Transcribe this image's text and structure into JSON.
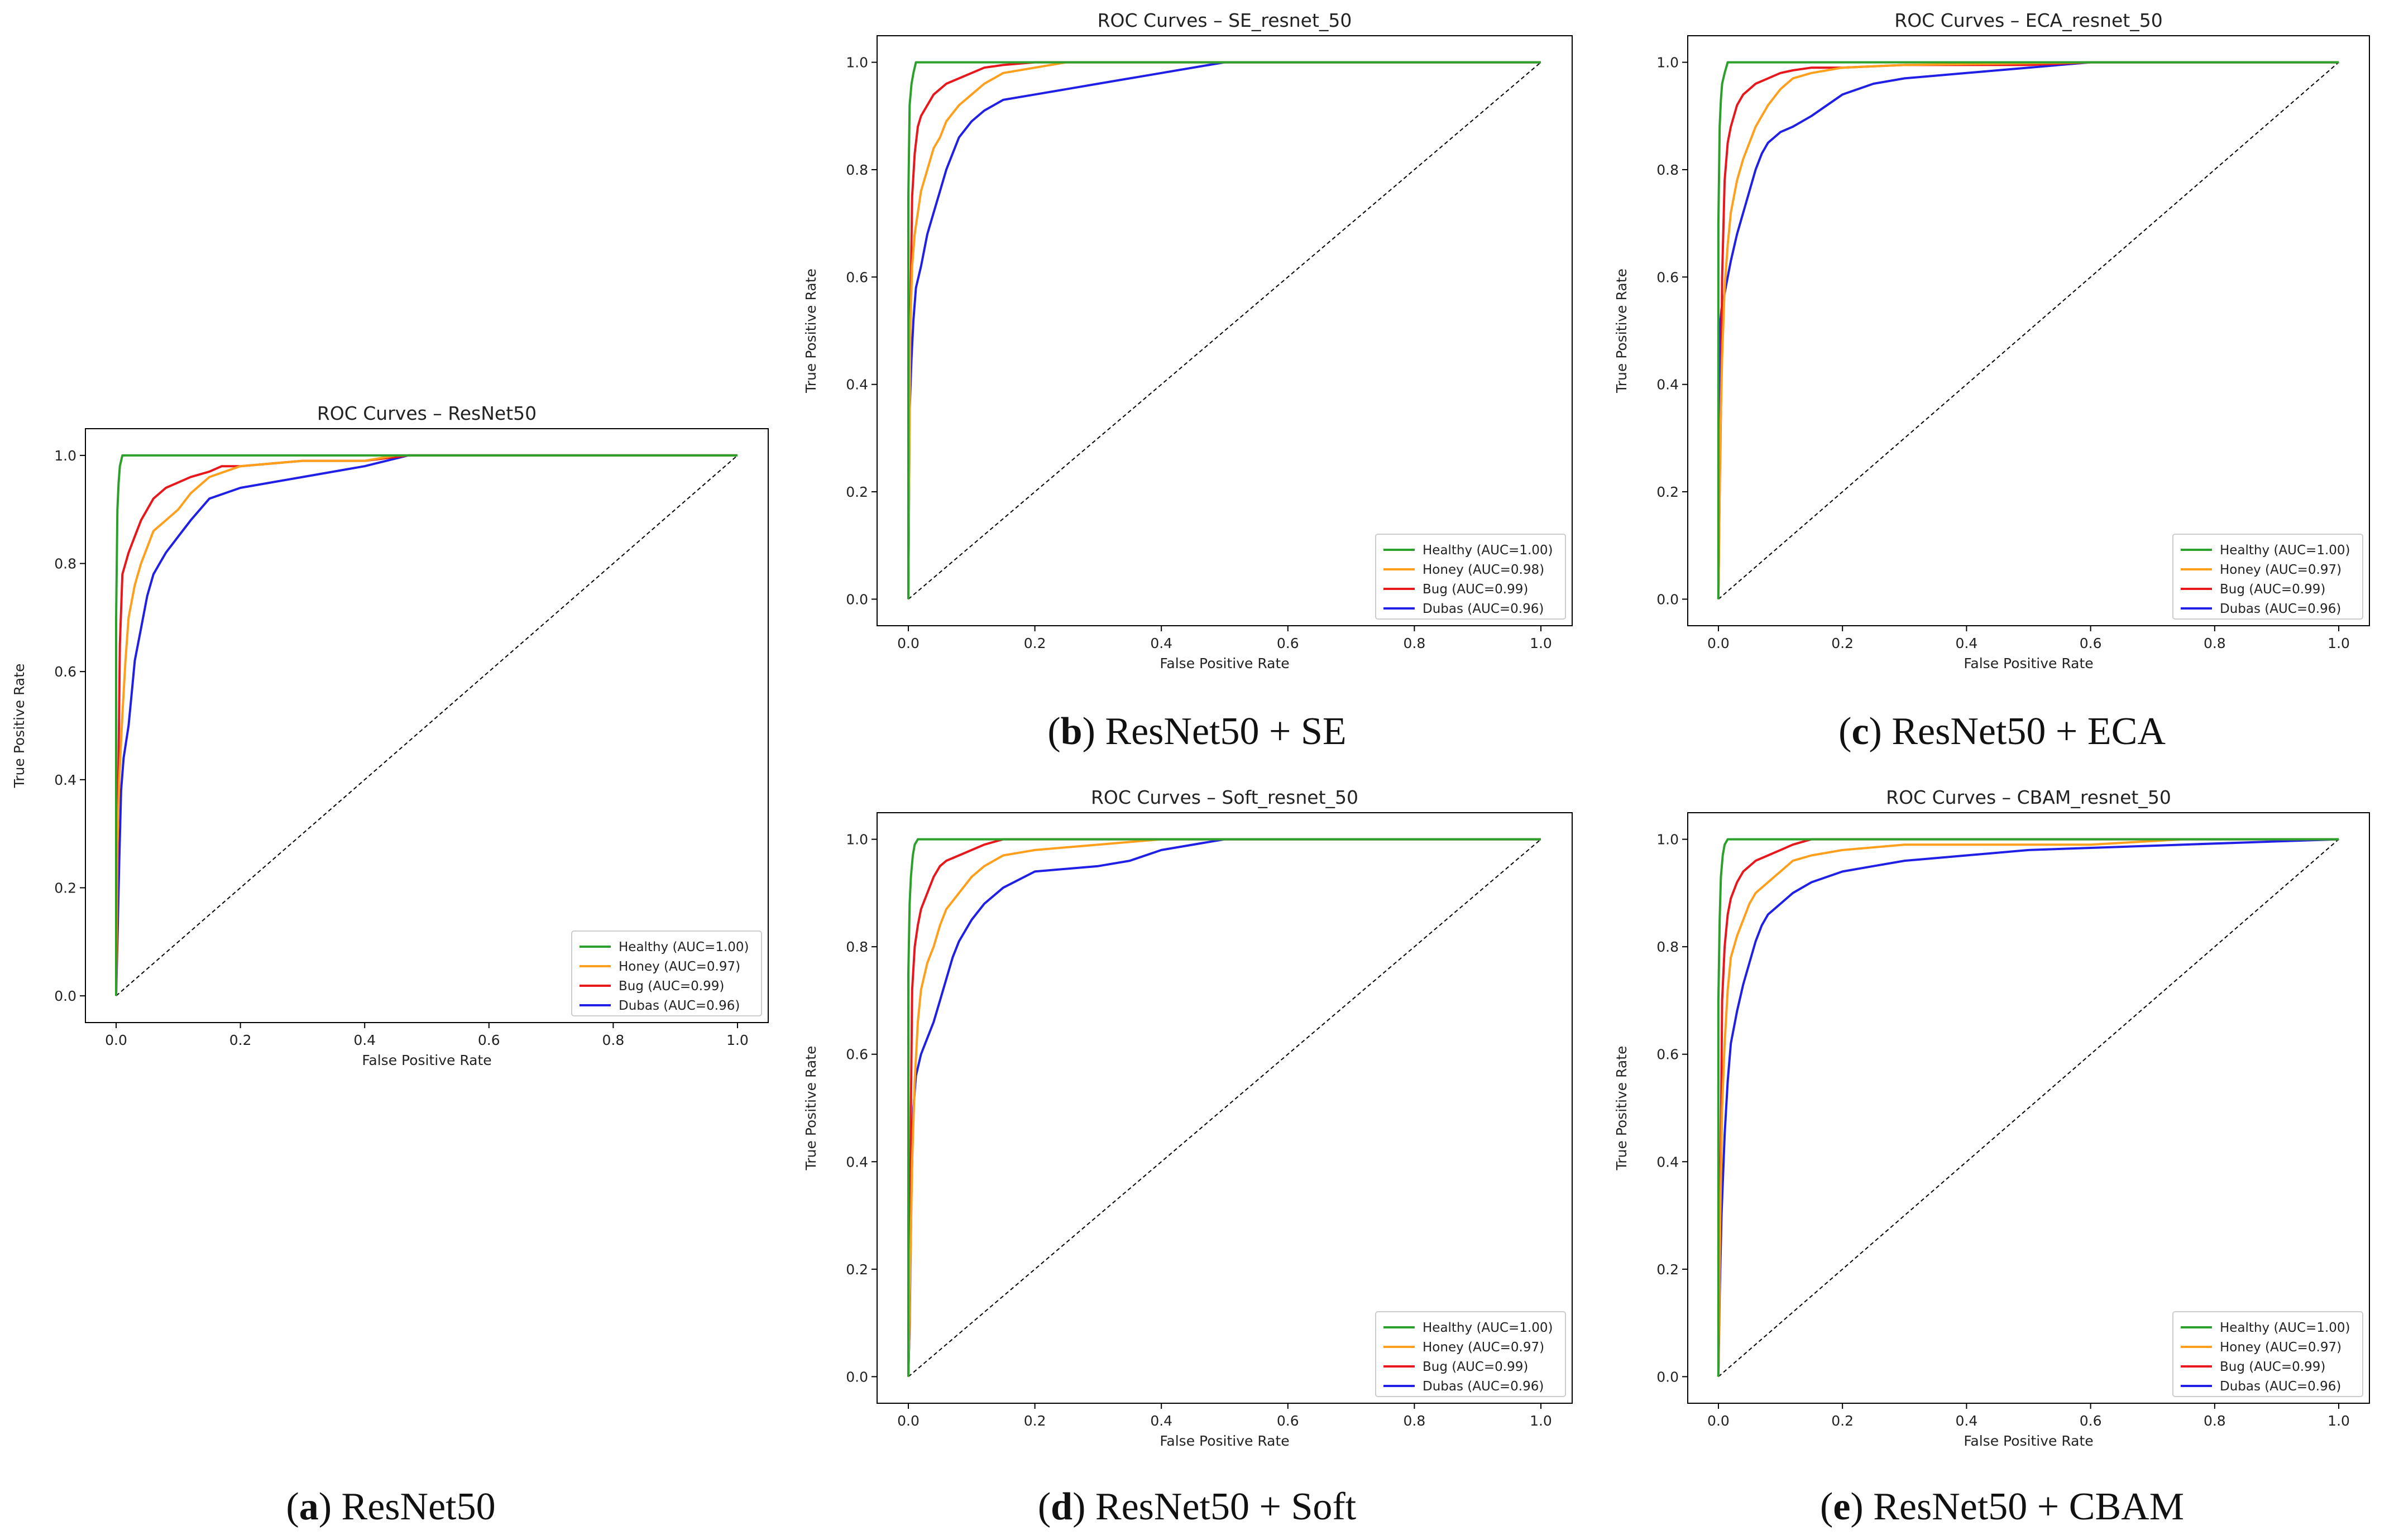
{
  "figure_captions": [
    {
      "letter": "a",
      "text": ") ResNet50"
    },
    {
      "letter": "b",
      "text": ") ResNet50 + SE"
    },
    {
      "letter": "c",
      "text": ") ResNet50 + ECA"
    },
    {
      "letter": "d",
      "text": ") ResNet50 + Soft"
    },
    {
      "letter": "e",
      "text": ") ResNet50 + CBAM"
    }
  ],
  "chart_data": [
    {
      "type": "line",
      "title": "ROC Curves – ResNet50",
      "xlabel": "False Positive Rate",
      "ylabel": "True Positive Rate",
      "xlim": [
        0,
        1
      ],
      "ylim": [
        0,
        1
      ],
      "xticks": [
        "0.0",
        "0.2",
        "0.4",
        "0.6",
        "0.8",
        "1.0"
      ],
      "yticks": [
        "0.0",
        "0.2",
        "0.4",
        "0.6",
        "0.8",
        "1.0"
      ],
      "legend_position": "lower-right",
      "diagonal": {
        "x": [
          0,
          1
        ],
        "y": [
          0,
          1
        ],
        "style": "dashed",
        "color": "#000000"
      },
      "series": [
        {
          "name": "Healthy (AUC=1.00)",
          "color": "#2ca02c",
          "x": [
            0,
            0,
            0.002,
            0.004,
            0.006,
            0.01,
            0.02,
            0.2,
            1
          ],
          "y": [
            0,
            0.7,
            0.9,
            0.95,
            0.98,
            1.0,
            1.0,
            1.0,
            1.0
          ]
        },
        {
          "name": "Honey (AUC=0.97)",
          "color": "#ff9f1c",
          "x": [
            0,
            0.002,
            0.005,
            0.01,
            0.015,
            0.02,
            0.03,
            0.04,
            0.05,
            0.06,
            0.08,
            0.1,
            0.12,
            0.15,
            0.2,
            0.3,
            0.4,
            0.45,
            1
          ],
          "y": [
            0,
            0.28,
            0.4,
            0.52,
            0.62,
            0.7,
            0.76,
            0.8,
            0.83,
            0.86,
            0.88,
            0.9,
            0.93,
            0.96,
            0.98,
            0.99,
            0.99,
            1.0,
            1.0
          ]
        },
        {
          "name": "Bug (AUC=0.99)",
          "color": "#e8171b",
          "x": [
            0,
            0.002,
            0.004,
            0.006,
            0.01,
            0.02,
            0.03,
            0.04,
            0.05,
            0.06,
            0.08,
            0.1,
            0.12,
            0.15,
            0.17,
            0.2,
            0.3,
            0.4,
            0.47,
            1
          ],
          "y": [
            0,
            0.25,
            0.45,
            0.65,
            0.78,
            0.82,
            0.85,
            0.88,
            0.9,
            0.92,
            0.94,
            0.95,
            0.96,
            0.97,
            0.98,
            0.98,
            0.99,
            0.99,
            1.0,
            1.0
          ]
        },
        {
          "name": "Dubas (AUC=0.96)",
          "color": "#1f1fe6",
          "x": [
            0,
            0.002,
            0.005,
            0.008,
            0.012,
            0.02,
            0.025,
            0.03,
            0.04,
            0.05,
            0.06,
            0.07,
            0.08,
            0.1,
            0.12,
            0.15,
            0.2,
            0.3,
            0.4,
            0.47,
            1
          ],
          "y": [
            0,
            0.1,
            0.25,
            0.38,
            0.44,
            0.5,
            0.56,
            0.62,
            0.68,
            0.74,
            0.78,
            0.8,
            0.82,
            0.85,
            0.88,
            0.92,
            0.94,
            0.96,
            0.98,
            1.0,
            1.0
          ]
        }
      ]
    },
    {
      "type": "line",
      "title": "ROC Curves – SE_resnet_50",
      "xlabel": "False Positive Rate",
      "ylabel": "True Positive Rate",
      "xlim": [
        0,
        1
      ],
      "ylim": [
        0,
        1
      ],
      "xticks": [
        "0.0",
        "0.2",
        "0.4",
        "0.6",
        "0.8",
        "1.0"
      ],
      "yticks": [
        "0.0",
        "0.2",
        "0.4",
        "0.6",
        "0.8",
        "1.0"
      ],
      "legend_position": "lower-right",
      "diagonal": {
        "x": [
          0,
          1
        ],
        "y": [
          0,
          1
        ],
        "style": "dashed",
        "color": "#000000"
      },
      "series": [
        {
          "name": "Healthy (AUC=1.00)",
          "color": "#2ca02c",
          "x": [
            0,
            0,
            0.002,
            0.005,
            0.008,
            0.012,
            0.02,
            0.2,
            1
          ],
          "y": [
            0,
            0.75,
            0.92,
            0.96,
            0.98,
            1.0,
            1.0,
            1.0,
            1.0
          ]
        },
        {
          "name": "Honey (AUC=0.98)",
          "color": "#ff9f1c",
          "x": [
            0,
            0.003,
            0.006,
            0.01,
            0.015,
            0.02,
            0.03,
            0.04,
            0.05,
            0.06,
            0.08,
            0.1,
            0.12,
            0.15,
            0.2,
            0.25,
            1
          ],
          "y": [
            0,
            0.5,
            0.62,
            0.68,
            0.72,
            0.76,
            0.8,
            0.84,
            0.86,
            0.89,
            0.92,
            0.94,
            0.96,
            0.98,
            0.99,
            1.0,
            1.0
          ]
        },
        {
          "name": "Bug (AUC=0.99)",
          "color": "#e8171b",
          "x": [
            0,
            0.002,
            0.004,
            0.006,
            0.01,
            0.015,
            0.02,
            0.03,
            0.04,
            0.05,
            0.06,
            0.08,
            0.1,
            0.12,
            0.15,
            0.2,
            0.3,
            1
          ],
          "y": [
            0,
            0.4,
            0.6,
            0.75,
            0.83,
            0.88,
            0.9,
            0.92,
            0.94,
            0.95,
            0.96,
            0.97,
            0.98,
            0.99,
            0.995,
            1.0,
            1.0,
            1.0
          ]
        },
        {
          "name": "Dubas (AUC=0.96)",
          "color": "#1f1fe6",
          "x": [
            0,
            0.002,
            0.005,
            0.008,
            0.012,
            0.02,
            0.03,
            0.04,
            0.05,
            0.06,
            0.07,
            0.08,
            0.1,
            0.12,
            0.15,
            0.2,
            0.25,
            0.3,
            0.35,
            0.4,
            0.5,
            1
          ],
          "y": [
            0,
            0.35,
            0.45,
            0.52,
            0.58,
            0.62,
            0.68,
            0.72,
            0.76,
            0.8,
            0.83,
            0.86,
            0.89,
            0.91,
            0.93,
            0.94,
            0.95,
            0.96,
            0.97,
            0.98,
            1.0,
            1.0
          ]
        }
      ]
    },
    {
      "type": "line",
      "title": "ROC Curves – ECA_resnet_50",
      "xlabel": "False Positive Rate",
      "ylabel": "True Positive Rate",
      "xlim": [
        0,
        1
      ],
      "ylim": [
        0,
        1
      ],
      "xticks": [
        "0.0",
        "0.2",
        "0.4",
        "0.6",
        "0.8",
        "1.0"
      ],
      "yticks": [
        "0.0",
        "0.2",
        "0.4",
        "0.6",
        "0.8",
        "1.0"
      ],
      "legend_position": "lower-right",
      "diagonal": {
        "x": [
          0,
          1
        ],
        "y": [
          0,
          1
        ],
        "style": "dashed",
        "color": "#000000"
      },
      "series": [
        {
          "name": "Healthy (AUC=1.00)",
          "color": "#2ca02c",
          "x": [
            0,
            0,
            0.002,
            0.004,
            0.006,
            0.01,
            0.015,
            0.02,
            0.1,
            1
          ],
          "y": [
            0,
            0.7,
            0.88,
            0.93,
            0.96,
            0.98,
            1.0,
            1.0,
            1.0,
            1.0
          ]
        },
        {
          "name": "Honey (AUC=0.97)",
          "color": "#ff9f1c",
          "x": [
            0,
            0.003,
            0.006,
            0.01,
            0.015,
            0.02,
            0.03,
            0.04,
            0.05,
            0.06,
            0.07,
            0.08,
            0.1,
            0.12,
            0.15,
            0.2,
            0.3,
            0.6,
            1
          ],
          "y": [
            0,
            0.3,
            0.45,
            0.58,
            0.66,
            0.72,
            0.78,
            0.82,
            0.85,
            0.88,
            0.9,
            0.92,
            0.95,
            0.97,
            0.98,
            0.99,
            0.995,
            1.0,
            1.0
          ]
        },
        {
          "name": "Bug (AUC=0.99)",
          "color": "#e8171b",
          "x": [
            0,
            0.002,
            0.004,
            0.006,
            0.01,
            0.015,
            0.02,
            0.03,
            0.04,
            0.05,
            0.06,
            0.08,
            0.1,
            0.12,
            0.15,
            0.2,
            0.3,
            0.5,
            0.6,
            1
          ],
          "y": [
            0,
            0.2,
            0.35,
            0.6,
            0.78,
            0.85,
            0.88,
            0.92,
            0.94,
            0.95,
            0.96,
            0.97,
            0.98,
            0.985,
            0.99,
            0.99,
            0.995,
            0.995,
            1.0,
            1.0
          ]
        },
        {
          "name": "Dubas (AUC=0.96)",
          "color": "#1f1fe6",
          "x": [
            0,
            0.002,
            0.005,
            0.01,
            0.015,
            0.02,
            0.03,
            0.04,
            0.05,
            0.06,
            0.07,
            0.08,
            0.1,
            0.12,
            0.15,
            0.2,
            0.25,
            0.3,
            0.4,
            0.5,
            0.6,
            1
          ],
          "y": [
            0,
            0.5,
            0.54,
            0.57,
            0.6,
            0.63,
            0.68,
            0.72,
            0.76,
            0.8,
            0.83,
            0.85,
            0.87,
            0.88,
            0.9,
            0.94,
            0.96,
            0.97,
            0.98,
            0.99,
            1.0,
            1.0
          ]
        }
      ]
    },
    {
      "type": "line",
      "title": "ROC Curves – Soft_resnet_50",
      "xlabel": "False Positive Rate",
      "ylabel": "True Positive Rate",
      "xlim": [
        0,
        1
      ],
      "ylim": [
        0,
        1
      ],
      "xticks": [
        "0.0",
        "0.2",
        "0.4",
        "0.6",
        "0.8",
        "1.0"
      ],
      "yticks": [
        "0.0",
        "0.2",
        "0.4",
        "0.6",
        "0.8",
        "1.0"
      ],
      "legend_position": "lower-right",
      "diagonal": {
        "x": [
          0,
          1
        ],
        "y": [
          0,
          1
        ],
        "style": "dashed",
        "color": "#000000"
      },
      "series": [
        {
          "name": "Healthy (AUC=1.00)",
          "color": "#2ca02c",
          "x": [
            0,
            0,
            0.002,
            0.004,
            0.007,
            0.01,
            0.015,
            0.02,
            0.1,
            1
          ],
          "y": [
            0,
            0.75,
            0.88,
            0.93,
            0.97,
            0.99,
            1.0,
            1.0,
            1.0,
            1.0
          ]
        },
        {
          "name": "Honey (AUC=0.97)",
          "color": "#ff9f1c",
          "x": [
            0,
            0.003,
            0.006,
            0.01,
            0.015,
            0.02,
            0.03,
            0.04,
            0.05,
            0.06,
            0.08,
            0.1,
            0.12,
            0.15,
            0.2,
            0.3,
            0.4,
            1
          ],
          "y": [
            0,
            0.2,
            0.4,
            0.55,
            0.66,
            0.72,
            0.77,
            0.8,
            0.84,
            0.87,
            0.9,
            0.93,
            0.95,
            0.97,
            0.98,
            0.99,
            1.0,
            1.0
          ]
        },
        {
          "name": "Bug (AUC=0.99)",
          "color": "#e8171b",
          "x": [
            0,
            0.002,
            0.004,
            0.006,
            0.01,
            0.015,
            0.02,
            0.03,
            0.04,
            0.05,
            0.06,
            0.08,
            0.1,
            0.12,
            0.15,
            0.2,
            0.4,
            1
          ],
          "y": [
            0,
            0.1,
            0.5,
            0.72,
            0.8,
            0.84,
            0.87,
            0.9,
            0.93,
            0.95,
            0.96,
            0.97,
            0.98,
            0.99,
            1.0,
            1.0,
            1.0,
            1.0
          ]
        },
        {
          "name": "Dubas (AUC=0.96)",
          "color": "#1f1fe6",
          "x": [
            0,
            0.002,
            0.005,
            0.008,
            0.012,
            0.02,
            0.03,
            0.04,
            0.05,
            0.06,
            0.07,
            0.08,
            0.1,
            0.12,
            0.15,
            0.2,
            0.3,
            0.35,
            0.4,
            0.5,
            1
          ],
          "y": [
            0,
            0.1,
            0.35,
            0.5,
            0.56,
            0.6,
            0.63,
            0.66,
            0.7,
            0.74,
            0.78,
            0.81,
            0.85,
            0.88,
            0.91,
            0.94,
            0.95,
            0.96,
            0.98,
            1.0,
            1.0
          ]
        }
      ]
    },
    {
      "type": "line",
      "title": "ROC Curves – CBAM_resnet_50",
      "xlabel": "False Positive Rate",
      "ylabel": "True Positive Rate",
      "xlim": [
        0,
        1
      ],
      "ylim": [
        0,
        1
      ],
      "xticks": [
        "0.0",
        "0.2",
        "0.4",
        "0.6",
        "0.8",
        "1.0"
      ],
      "yticks": [
        "0.0",
        "0.2",
        "0.4",
        "0.6",
        "0.8",
        "1.0"
      ],
      "legend_position": "lower-right",
      "diagonal": {
        "x": [
          0,
          1
        ],
        "y": [
          0,
          1
        ],
        "style": "dashed",
        "color": "#000000"
      },
      "series": [
        {
          "name": "Healthy (AUC=1.00)",
          "color": "#2ca02c",
          "x": [
            0,
            0,
            0.002,
            0.004,
            0.007,
            0.01,
            0.015,
            0.02,
            0.1,
            1
          ],
          "y": [
            0,
            0.7,
            0.85,
            0.93,
            0.97,
            0.99,
            1.0,
            1.0,
            1.0,
            1.0
          ]
        },
        {
          "name": "Honey (AUC=0.97)",
          "color": "#ff9f1c",
          "x": [
            0,
            0.003,
            0.006,
            0.01,
            0.015,
            0.02,
            0.03,
            0.04,
            0.05,
            0.06,
            0.08,
            0.1,
            0.12,
            0.15,
            0.2,
            0.3,
            0.6,
            0.75,
            1
          ],
          "y": [
            0,
            0.3,
            0.5,
            0.62,
            0.72,
            0.78,
            0.82,
            0.85,
            0.88,
            0.9,
            0.92,
            0.94,
            0.96,
            0.97,
            0.98,
            0.99,
            0.99,
            1.0,
            1.0
          ]
        },
        {
          "name": "Bug (AUC=0.99)",
          "color": "#e8171b",
          "x": [
            0,
            0.002,
            0.004,
            0.006,
            0.01,
            0.015,
            0.02,
            0.03,
            0.04,
            0.05,
            0.06,
            0.08,
            0.1,
            0.12,
            0.15,
            0.2,
            0.4,
            0.75,
            1
          ],
          "y": [
            0,
            0.2,
            0.45,
            0.7,
            0.8,
            0.86,
            0.89,
            0.92,
            0.94,
            0.95,
            0.96,
            0.97,
            0.98,
            0.99,
            1.0,
            1.0,
            1.0,
            1.0,
            1.0
          ]
        },
        {
          "name": "Dubas (AUC=0.96)",
          "color": "#1f1fe6",
          "x": [
            0,
            0.002,
            0.005,
            0.01,
            0.015,
            0.02,
            0.03,
            0.04,
            0.05,
            0.06,
            0.07,
            0.08,
            0.1,
            0.12,
            0.15,
            0.2,
            0.25,
            0.3,
            0.4,
            0.5,
            0.75,
            1
          ],
          "y": [
            0,
            0.15,
            0.3,
            0.45,
            0.55,
            0.62,
            0.68,
            0.73,
            0.77,
            0.81,
            0.84,
            0.86,
            0.88,
            0.9,
            0.92,
            0.94,
            0.95,
            0.96,
            0.97,
            0.98,
            0.99,
            1.0
          ]
        }
      ]
    }
  ]
}
